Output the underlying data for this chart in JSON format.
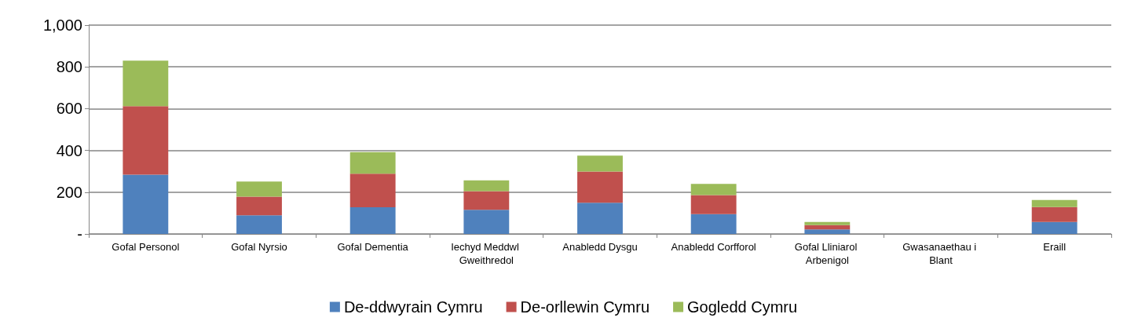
{
  "chart_data": {
    "type": "bar",
    "stacked": true,
    "categories": [
      "Gofal Personol",
      "Gofal Nyrsio",
      "Gofal Dementia",
      "Iechyd Meddwl Gweithredol",
      "Anabledd Dysgu",
      "Anabledd Corfforol",
      "Gofal Lliniarol Arbenigol",
      "Gwasanaethau i Blant",
      "Eraill"
    ],
    "series": [
      {
        "name": "De-ddwyrain Cymru",
        "color": "#4f81bd",
        "values": [
          284,
          89,
          128,
          116,
          149,
          95,
          22,
          0,
          57
        ]
      },
      {
        "name": "De-orllewin Cymru",
        "color": "#c0504d",
        "values": [
          328,
          90,
          161,
          89,
          150,
          91,
          20,
          0,
          72
        ]
      },
      {
        "name": "Gogledd Cymru",
        "color": "#9bbb59",
        "values": [
          218,
          72,
          103,
          52,
          76,
          54,
          15,
          0,
          34
        ]
      }
    ],
    "ylim": [
      0,
      1000
    ],
    "yticks": [
      {
        "value": 0,
        "label": "-"
      },
      200,
      400,
      600,
      800,
      {
        "value": 1000,
        "label": "1,000"
      }
    ],
    "grid": "y",
    "legend": "bottom"
  }
}
